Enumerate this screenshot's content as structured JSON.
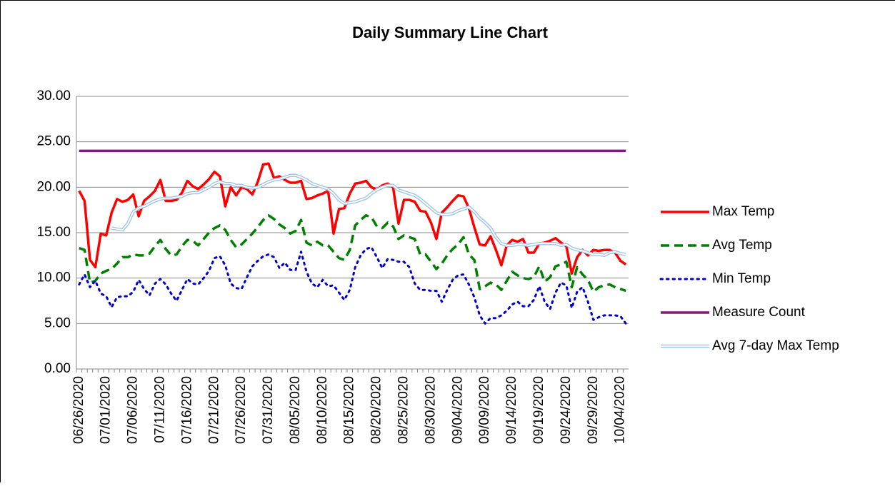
{
  "chart_data": {
    "type": "line",
    "title": "Daily Summary Line Chart",
    "categories": [
      "06/26/2020",
      null,
      null,
      null,
      null,
      "07/01/2020",
      null,
      null,
      null,
      null,
      "07/06/2020",
      null,
      null,
      null,
      null,
      "07/11/2020",
      null,
      null,
      null,
      null,
      "07/16/2020",
      null,
      null,
      null,
      null,
      "07/21/2020",
      null,
      null,
      null,
      null,
      "07/26/2020",
      null,
      null,
      null,
      null,
      "07/31/2020",
      null,
      null,
      null,
      null,
      "08/05/2020",
      null,
      null,
      null,
      null,
      "08/10/2020",
      null,
      null,
      null,
      null,
      "08/15/2020",
      null,
      null,
      null,
      null,
      "08/20/2020",
      null,
      null,
      null,
      null,
      "08/25/2020",
      null,
      null,
      null,
      null,
      "08/30/2020",
      null,
      null,
      null,
      null,
      "09/04/2020",
      null,
      null,
      null,
      null,
      "09/09/2020",
      null,
      null,
      null,
      null,
      "09/14/2020",
      null,
      null,
      null,
      null,
      "09/19/2020",
      null,
      null,
      null,
      null,
      "09/24/2020",
      null,
      null,
      null,
      null,
      "09/29/2020",
      null,
      null,
      null,
      null,
      "10/04/2020",
      null
    ],
    "series": [
      {
        "name": "Max Temp",
        "color": "#ff0000",
        "style": "solid",
        "values": [
          19.6,
          18.5,
          12.0,
          11.2,
          14.9,
          14.7,
          17.2,
          18.7,
          18.4,
          18.6,
          19.2,
          16.8,
          18.5,
          19.0,
          19.6,
          20.8,
          18.5,
          18.5,
          18.6,
          19.4,
          20.7,
          20.1,
          19.8,
          20.3,
          20.9,
          21.7,
          21.2,
          17.9,
          20.0,
          19.1,
          20.0,
          19.8,
          19.2,
          20.6,
          22.5,
          22.6,
          21.0,
          21.2,
          20.8,
          20.5,
          20.5,
          20.7,
          18.7,
          18.8,
          19.1,
          19.3,
          19.6,
          14.9,
          17.6,
          17.7,
          19.3,
          20.4,
          20.5,
          20.7,
          20.0,
          19.7,
          20.2,
          20.4,
          20.0,
          16.0,
          18.6,
          18.6,
          18.4,
          17.4,
          17.3,
          16.1,
          14.3,
          17.2,
          17.8,
          18.5,
          19.1,
          19.0,
          17.7,
          15.6,
          13.7,
          13.6,
          14.6,
          13.1,
          11.4,
          13.6,
          14.2,
          14.0,
          14.3,
          12.8,
          12.8,
          13.8,
          13.9,
          14.1,
          14.4,
          13.9,
          13.5,
          10.5,
          12.3,
          13.1,
          12.5,
          13.1,
          13.0,
          13.1,
          13.1,
          12.8,
          11.9,
          11.5
        ]
      },
      {
        "name": "Avg Temp",
        "color": "#008000",
        "style": "dashed",
        "values": [
          13.3,
          13.1,
          9.5,
          9.7,
          10.5,
          10.8,
          11.0,
          11.6,
          12.3,
          12.3,
          12.6,
          12.5,
          12.5,
          12.7,
          13.5,
          14.2,
          13.2,
          12.5,
          12.6,
          13.5,
          14.2,
          14.1,
          13.6,
          14.3,
          15.0,
          15.5,
          15.8,
          15.3,
          14.2,
          13.4,
          13.7,
          14.3,
          14.9,
          15.6,
          16.4,
          16.9,
          16.5,
          15.9,
          15.5,
          14.9,
          15.2,
          16.4,
          13.9,
          13.6,
          14.0,
          13.6,
          13.6,
          12.9,
          12.2,
          12.0,
          13.1,
          15.8,
          16.4,
          16.9,
          16.7,
          15.7,
          15.5,
          16.1,
          15.7,
          14.3,
          14.7,
          14.5,
          14.3,
          12.6,
          12.6,
          11.8,
          11.0,
          11.6,
          12.5,
          13.2,
          13.7,
          14.5,
          12.6,
          12.0,
          8.8,
          9.1,
          9.5,
          9.3,
          8.7,
          9.7,
          10.7,
          10.3,
          10.0,
          9.9,
          10.1,
          11.3,
          9.6,
          10.1,
          11.3,
          11.5,
          11.8,
          9.0,
          11.2,
          10.4,
          9.8,
          8.5,
          9.0,
          9.2,
          9.3,
          9.0,
          8.8,
          8.6
        ]
      },
      {
        "name": "Min Temp",
        "color": "#0000cc",
        "style": "dotted",
        "values": [
          9.3,
          10.4,
          9.0,
          9.7,
          8.3,
          8.0,
          6.8,
          7.9,
          8.0,
          8.0,
          8.5,
          9.8,
          8.8,
          8.1,
          9.4,
          9.9,
          9.3,
          8.3,
          7.5,
          8.7,
          9.9,
          9.4,
          9.3,
          10.0,
          10.8,
          12.2,
          12.4,
          11.4,
          9.4,
          8.9,
          8.8,
          10.1,
          11.3,
          11.9,
          12.4,
          12.6,
          12.3,
          11.1,
          11.7,
          10.9,
          10.9,
          12.9,
          10.7,
          9.4,
          9.0,
          9.8,
          9.1,
          9.2,
          8.4,
          7.6,
          8.7,
          11.2,
          12.5,
          13.2,
          13.4,
          12.3,
          11.1,
          12.1,
          12.0,
          11.8,
          11.8,
          11.2,
          9.4,
          8.7,
          8.7,
          8.6,
          8.6,
          7.4,
          8.7,
          9.8,
          10.3,
          10.4,
          9.3,
          7.9,
          5.9,
          5.0,
          5.6,
          5.6,
          5.9,
          6.4,
          7.1,
          7.4,
          6.9,
          6.9,
          7.6,
          9.1,
          7.4,
          6.6,
          8.4,
          9.5,
          9.2,
          6.7,
          8.5,
          9.0,
          7.4,
          5.4,
          5.7,
          5.9,
          5.9,
          5.9,
          5.8,
          5.0
        ]
      },
      {
        "name": "Measure Count",
        "color": "#7b1c7b",
        "style": "solid",
        "values": [
          24,
          24,
          24,
          24,
          24,
          24,
          24,
          24,
          24,
          24,
          24,
          24,
          24,
          24,
          24,
          24,
          24,
          24,
          24,
          24,
          24,
          24,
          24,
          24,
          24,
          24,
          24,
          24,
          24,
          24,
          24,
          24,
          24,
          24,
          24,
          24,
          24,
          24,
          24,
          24,
          24,
          24,
          24,
          24,
          24,
          24,
          24,
          24,
          24,
          24,
          24,
          24,
          24,
          24,
          24,
          24,
          24,
          24,
          24,
          24,
          24,
          24,
          24,
          24,
          24,
          24,
          24,
          24,
          24,
          24,
          24,
          24,
          24,
          24,
          24,
          24,
          24,
          24,
          24,
          24,
          24,
          24,
          24,
          24,
          24,
          24,
          24,
          24,
          24,
          24,
          24,
          24,
          24,
          24,
          24,
          24,
          24,
          24,
          24,
          24,
          24,
          24
        ]
      },
      {
        "name": "Avg 7-day Max Temp",
        "color": "#9dc3e6",
        "style": "double",
        "values": [
          null,
          null,
          null,
          null,
          null,
          null,
          15.5,
          15.4,
          15.3,
          16.0,
          17.3,
          17.7,
          17.9,
          18.2,
          18.5,
          18.7,
          18.8,
          18.8,
          18.9,
          19.0,
          19.3,
          19.4,
          19.4,
          19.7,
          20.0,
          20.4,
          20.6,
          20.4,
          20.4,
          20.2,
          20.2,
          20.0,
          19.9,
          20.0,
          20.3,
          20.6,
          20.8,
          20.9,
          21.1,
          21.3,
          21.3,
          21.1,
          20.8,
          20.4,
          20.2,
          20.0,
          19.8,
          19.3,
          18.6,
          18.2,
          18.3,
          18.4,
          18.6,
          18.8,
          19.3,
          19.7,
          20.0,
          20.2,
          20.2,
          19.7,
          19.5,
          19.3,
          19.1,
          18.7,
          18.2,
          17.7,
          17.2,
          17.0,
          17.0,
          17.1,
          17.4,
          17.6,
          17.8,
          17.3,
          16.6,
          16.1,
          15.5,
          14.5,
          13.8,
          13.6,
          13.6,
          13.7,
          13.7,
          13.6,
          13.7,
          13.8,
          13.8,
          13.8,
          13.8,
          13.6,
          13.7,
          13.3,
          13.1,
          13.0,
          12.8,
          12.6,
          12.6,
          12.5,
          12.8,
          12.9,
          12.7,
          12.6
        ]
      }
    ],
    "ylim": [
      0,
      30
    ],
    "yticks": [
      {
        "value": 0,
        "label": "0.00"
      },
      {
        "value": 5,
        "label": "5.00"
      },
      {
        "value": 10,
        "label": "10.00"
      },
      {
        "value": 15,
        "label": "15.00"
      },
      {
        "value": 20,
        "label": "20.00"
      },
      {
        "value": 25,
        "label": "25.00"
      },
      {
        "value": 30,
        "label": "30.00"
      }
    ],
    "grid": true,
    "legend": "right"
  }
}
